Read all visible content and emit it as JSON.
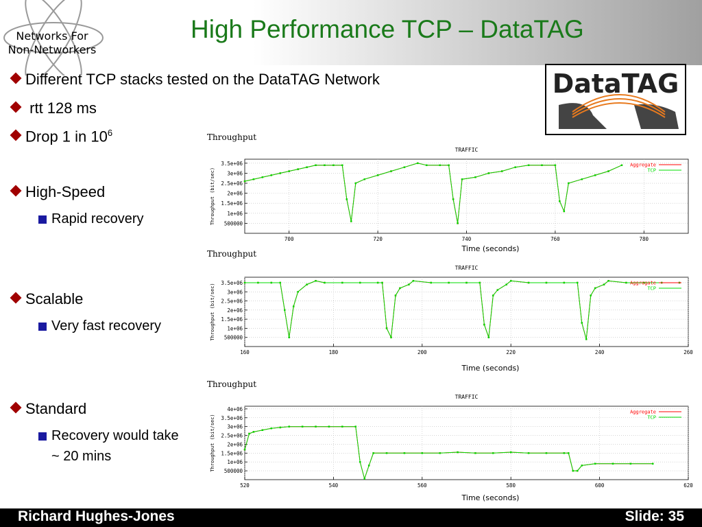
{
  "slide": {
    "title": "High Performance TCP – DataTAG",
    "logo_lines": [
      "Networks For",
      "Non-Networkers"
    ],
    "datatag_logo": "DataTAG",
    "bullets": [
      {
        "text": "Different TCP stacks tested on the DataTAG Network"
      },
      {
        "text": "rtt 128 ms"
      },
      {
        "text": "Drop 1 in 10",
        "sup": "6"
      },
      {
        "text": "High-Speed",
        "sub": "Rapid recovery"
      },
      {
        "text": "Scalable",
        "sub": "Very fast recovery"
      },
      {
        "text": "Standard",
        "sub": "Recovery would take ~ 20 mins"
      }
    ]
  },
  "footer": {
    "author": "Richard Hughes-Jones",
    "slide": "Slide: 35"
  },
  "chart_data": [
    {
      "type": "line",
      "heading": "Throughput",
      "title": "TRAFFIC",
      "x_label": "Time (seconds)",
      "y_label": "Throughput (bit/sec)",
      "grid": true,
      "legend": "upper right",
      "x": [
        690,
        692,
        694,
        696,
        698,
        700,
        702,
        704,
        706,
        708,
        710,
        712,
        713,
        714,
        715,
        717,
        720,
        723,
        726,
        729,
        731,
        734,
        736,
        737,
        738,
        739,
        742,
        745,
        748,
        751,
        754,
        757,
        760,
        761,
        762,
        763,
        766,
        769,
        772,
        775
      ],
      "series": [
        {
          "name": "Aggregate",
          "color": "#ff0000",
          "values": [
            2600000,
            2700000,
            2800000,
            2900000,
            3000000,
            3100000,
            3200000,
            3300000,
            3400000,
            3400000,
            3400000,
            3400000,
            1700000,
            600000,
            2500000,
            2700000,
            2900000,
            3100000,
            3300000,
            3500000,
            3400000,
            3400000,
            3400000,
            1700000,
            500000,
            2700000,
            2800000,
            3000000,
            3100000,
            3300000,
            3400000,
            3400000,
            3400000,
            1600000,
            1100000,
            2500000,
            2700000,
            2900000,
            3100000,
            3400000
          ]
        },
        {
          "name": "TCP",
          "color": "#00dd00",
          "values": [
            2600000,
            2700000,
            2800000,
            2900000,
            3000000,
            3100000,
            3200000,
            3300000,
            3400000,
            3400000,
            3400000,
            3400000,
            1700000,
            600000,
            2500000,
            2700000,
            2900000,
            3100000,
            3300000,
            3500000,
            3400000,
            3400000,
            3400000,
            1700000,
            500000,
            2700000,
            2800000,
            3000000,
            3100000,
            3300000,
            3400000,
            3400000,
            3400000,
            1600000,
            1100000,
            2500000,
            2700000,
            2900000,
            3100000,
            3400000
          ]
        }
      ],
      "xlim": [
        690,
        790
      ],
      "xticks": [
        700,
        720,
        740,
        760,
        780
      ],
      "ylim": [
        0,
        3700000
      ],
      "yticks": [
        500000,
        {
          "value": 1000000,
          "label": "1e+06"
        },
        {
          "value": 1500000,
          "label": "1.5e+06"
        },
        {
          "value": 2000000,
          "label": "2e+06"
        },
        {
          "value": 2500000,
          "label": "2.5e+06"
        },
        {
          "value": 3000000,
          "label": "3e+06"
        },
        {
          "value": 3500000,
          "label": "3.5e+06"
        }
      ]
    },
    {
      "type": "line",
      "heading": "Throughput",
      "title": "TRAFFIC",
      "x_label": "Time (seconds)",
      "y_label": "Throughput (bit/sec)",
      "grid": true,
      "legend": "upper right",
      "x": [
        160,
        163,
        166,
        168,
        169,
        170,
        171,
        172,
        174,
        176,
        178,
        182,
        186,
        190,
        191,
        192,
        193,
        194,
        195,
        197,
        198,
        202,
        206,
        210,
        213,
        214,
        215,
        216,
        217,
        219,
        220,
        224,
        228,
        232,
        235,
        236,
        237,
        238,
        239,
        241,
        242,
        246,
        250,
        254,
        258
      ],
      "series": [
        {
          "name": "Aggregate",
          "color": "#ff0000",
          "values": [
            3500000,
            3500000,
            3500000,
            3500000,
            2000000,
            500000,
            2200000,
            3000000,
            3400000,
            3600000,
            3500000,
            3500000,
            3500000,
            3500000,
            3500000,
            1000000,
            500000,
            2800000,
            3200000,
            3400000,
            3600000,
            3500000,
            3500000,
            3500000,
            3500000,
            1200000,
            500000,
            2800000,
            3100000,
            3400000,
            3600000,
            3500000,
            3500000,
            3500000,
            3500000,
            1300000,
            400000,
            2800000,
            3200000,
            3400000,
            3600000,
            3500000,
            3500000,
            3500000,
            3500000
          ]
        },
        {
          "name": "TCP",
          "color": "#00dd00",
          "values": [
            3500000,
            3500000,
            3500000,
            3500000,
            2000000,
            500000,
            2200000,
            3000000,
            3400000,
            3600000,
            3500000,
            3500000,
            3500000,
            3500000,
            3500000,
            1000000,
            500000,
            2800000,
            3200000,
            3400000,
            3600000,
            3500000,
            3500000,
            3500000,
            3500000,
            1200000,
            500000,
            2800000,
            3100000,
            3400000,
            3600000,
            3500000,
            3500000,
            3500000,
            3500000,
            1300000,
            400000,
            2800000,
            3200000,
            3400000,
            3600000,
            3500000,
            3500000,
            3500000,
            3500000
          ]
        }
      ],
      "xlim": [
        160,
        260
      ],
      "xticks": [
        160,
        180,
        200,
        220,
        240,
        260
      ],
      "ylim": [
        0,
        3800000
      ],
      "yticks": [
        500000,
        {
          "value": 1000000,
          "label": "1e+06"
        },
        {
          "value": 1500000,
          "label": "1.5e+06"
        },
        {
          "value": 2000000,
          "label": "2e+06"
        },
        {
          "value": 2500000,
          "label": "2.5e+06"
        },
        {
          "value": 3000000,
          "label": "3e+06"
        },
        {
          "value": 3500000,
          "label": "3.5e+06"
        }
      ]
    },
    {
      "type": "line",
      "heading": "Throughput",
      "title": "TRAFFIC",
      "x_label": "Time (seconds)",
      "y_label": "Throughput (bit/sec)",
      "grid": true,
      "legend": "upper right",
      "x": [
        520,
        521,
        522,
        524,
        526,
        528,
        530,
        533,
        536,
        539,
        542,
        545,
        546,
        547,
        548,
        549,
        552,
        556,
        560,
        564,
        568,
        572,
        576,
        580,
        584,
        588,
        592,
        593,
        594,
        595,
        596,
        599,
        603,
        607,
        612
      ],
      "series": [
        {
          "name": "Aggregate",
          "color": "#ff0000",
          "values": [
            1700000,
            2600000,
            2700000,
            2800000,
            2900000,
            2950000,
            3000000,
            3000000,
            3000000,
            3000000,
            3000000,
            3000000,
            1000000,
            50000,
            800000,
            1500000,
            1500000,
            1500000,
            1500000,
            1500000,
            1550000,
            1500000,
            1500000,
            1550000,
            1500000,
            1500000,
            1500000,
            1500000,
            500000,
            500000,
            800000,
            900000,
            900000,
            900000,
            900000
          ]
        },
        {
          "name": "TCP",
          "color": "#00dd00",
          "values": [
            1700000,
            2600000,
            2700000,
            2800000,
            2900000,
            2950000,
            3000000,
            3000000,
            3000000,
            3000000,
            3000000,
            3000000,
            1000000,
            50000,
            800000,
            1500000,
            1500000,
            1500000,
            1500000,
            1500000,
            1550000,
            1500000,
            1500000,
            1550000,
            1500000,
            1500000,
            1500000,
            1500000,
            500000,
            500000,
            800000,
            900000,
            900000,
            900000,
            900000
          ]
        }
      ],
      "xlim": [
        520,
        620
      ],
      "xticks": [
        520,
        540,
        560,
        580,
        600,
        620
      ],
      "ylim": [
        0,
        4150000
      ],
      "yticks": [
        500000,
        {
          "value": 1000000,
          "label": "1e+06"
        },
        {
          "value": 1500000,
          "label": "1.5e+06"
        },
        {
          "value": 2000000,
          "label": "2e+06"
        },
        {
          "value": 2500000,
          "label": "2.5e+06"
        },
        {
          "value": 3000000,
          "label": "3e+06"
        },
        {
          "value": 3500000,
          "label": "3.5e+06"
        },
        {
          "value": 4000000,
          "label": "4e+06"
        }
      ]
    }
  ]
}
